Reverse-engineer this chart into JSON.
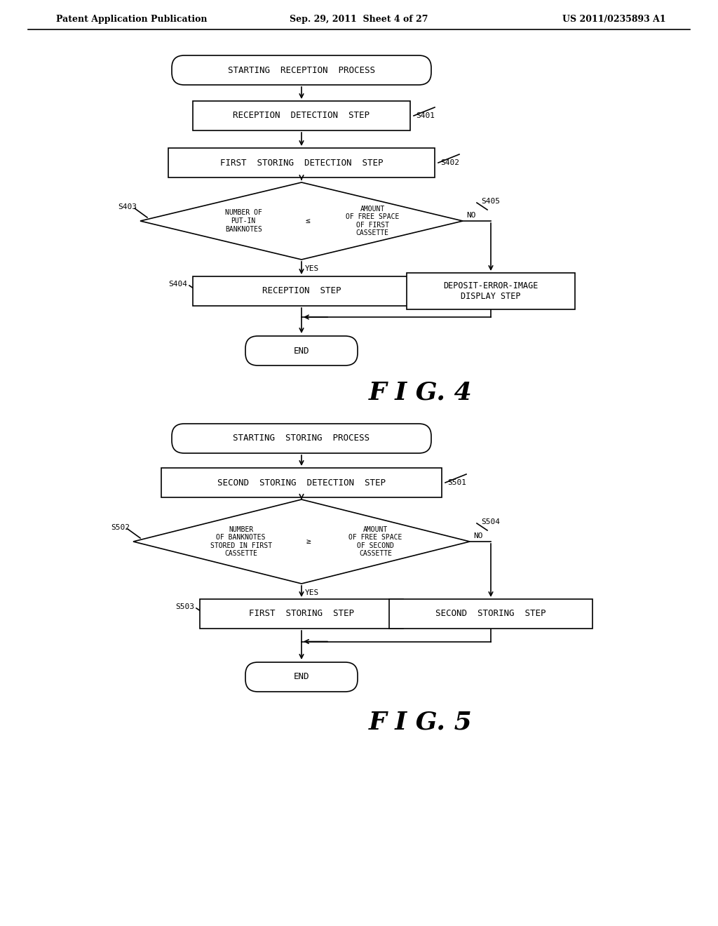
{
  "bg_color": "#ffffff",
  "header": {
    "left": "Patent Application Publication",
    "center": "Sep. 29, 2011  Sheet 4 of 27",
    "right": "US 2011/0235893 A1"
  },
  "fig4_title": "F I G. 4",
  "fig5_title": "F I G. 5",
  "lw": 1.2,
  "arrow_scale": 10,
  "font_mono": "monospace",
  "font_serif": "serif"
}
